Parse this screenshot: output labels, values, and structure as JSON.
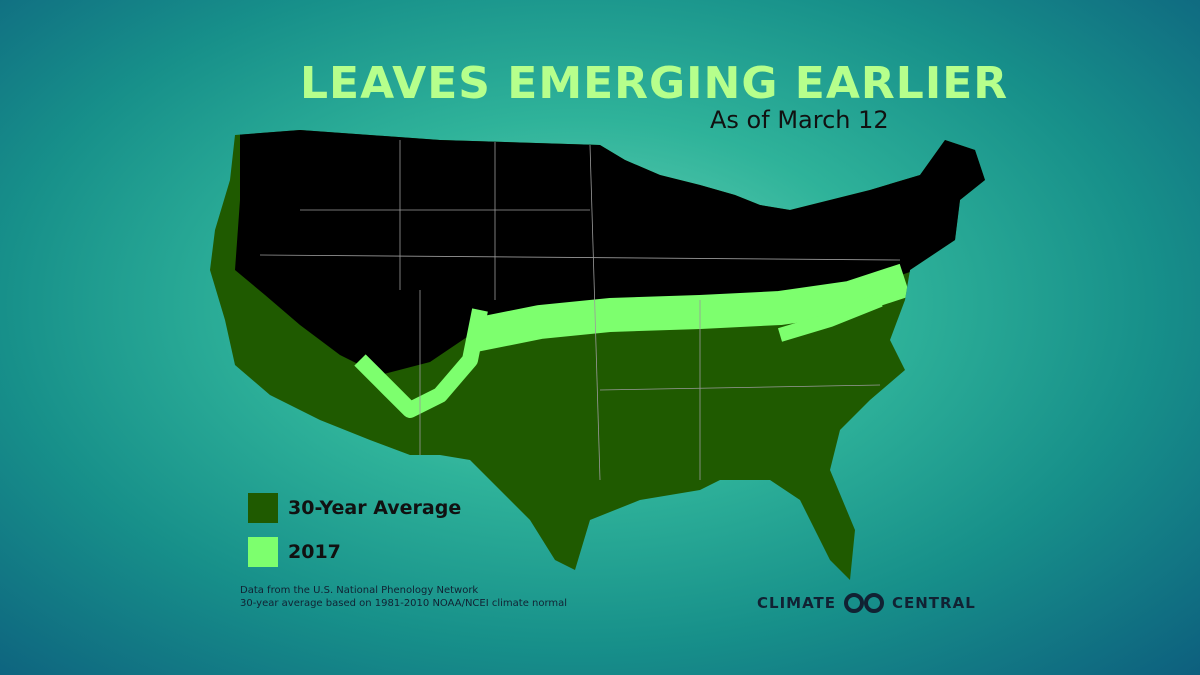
{
  "header": {
    "title": "LEAVES EMERGING EARLIER",
    "subtitle": "As of March 12"
  },
  "legend": {
    "items": [
      {
        "label": "30-Year Average",
        "color": "#1f5a00"
      },
      {
        "label": "2017",
        "color": "#7dff6e"
      }
    ]
  },
  "notes": [
    "Data from the U.S. National Phenology Network",
    "30-year average based on 1981-2010 NOAA/NCEI climate normal"
  ],
  "logo": {
    "left": "CLIMATE",
    "right": "CENTRAL"
  }
}
